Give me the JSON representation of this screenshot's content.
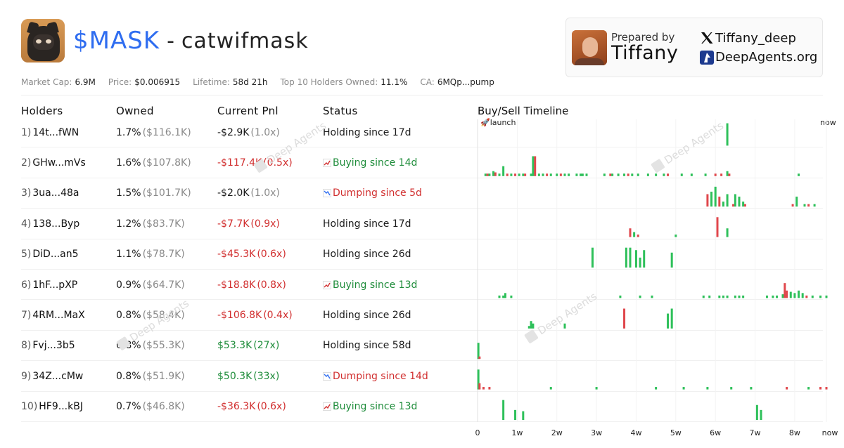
{
  "header": {
    "ticker": "$MASK",
    "dash": "-",
    "project_name": "catwifmask",
    "prepared_by_label": "Prepared by",
    "preparer": "Tiffany",
    "x_handle": "Tiffany_deep",
    "website": "DeepAgents.org"
  },
  "stats": [
    {
      "label": "Market Cap:",
      "value": "6.9M"
    },
    {
      "label": "Price:",
      "value": "$0.006915"
    },
    {
      "label": "Lifetime:",
      "value": "58d 21h"
    },
    {
      "label": "Top 10 Holders Owned:",
      "value": "11.1%"
    },
    {
      "label": "CA:",
      "value": "6MQp...pump"
    }
  ],
  "table": {
    "headers": {
      "holders": "Holders",
      "owned": "Owned",
      "pnl": "Current Pnl",
      "status": "Status"
    },
    "rows": [
      {
        "rank": "1)",
        "address": "14t...fWN",
        "owned_pct": "1.7%",
        "owned_usd": "($116.1K)",
        "pnl": "-$2.9K",
        "mult": "(1.0x)",
        "pnl_kind": "neutral",
        "status": "Holding since 17d",
        "status_kind": "hold"
      },
      {
        "rank": "2)",
        "address": "GHw...mVs",
        "owned_pct": "1.6%",
        "owned_usd": "($107.8K)",
        "pnl": "-$117.4K",
        "mult": "(0.5x)",
        "pnl_kind": "neg",
        "status": "Buying since 14d",
        "status_kind": "buy"
      },
      {
        "rank": "3)",
        "address": "3ua...48a",
        "owned_pct": "1.5%",
        "owned_usd": "($101.7K)",
        "pnl": "-$2.0K",
        "mult": "(1.0x)",
        "pnl_kind": "neutral",
        "status": "Dumping since 5d",
        "status_kind": "dump"
      },
      {
        "rank": "4)",
        "address": "138...Byp",
        "owned_pct": "1.2%",
        "owned_usd": "($83.7K)",
        "pnl": "-$7.7K",
        "mult": "(0.9x)",
        "pnl_kind": "neg",
        "status": "Holding since 17d",
        "status_kind": "hold"
      },
      {
        "rank": "5)",
        "address": "DiD...an5",
        "owned_pct": "1.1%",
        "owned_usd": "($78.7K)",
        "pnl": "-$45.3K",
        "mult": "(0.6x)",
        "pnl_kind": "neg",
        "status": "Holding since 26d",
        "status_kind": "hold"
      },
      {
        "rank": "6)",
        "address": "1hF...pXP",
        "owned_pct": "0.9%",
        "owned_usd": "($64.7K)",
        "pnl": "-$18.8K",
        "mult": "(0.8x)",
        "pnl_kind": "neg",
        "status": "Buying since 13d",
        "status_kind": "buy"
      },
      {
        "rank": "7)",
        "address": "4RM...MaX",
        "owned_pct": "0.8%",
        "owned_usd": "($58.4K)",
        "pnl": "-$106.8K",
        "mult": "(0.4x)",
        "pnl_kind": "neg",
        "status": "Holding since 26d",
        "status_kind": "hold"
      },
      {
        "rank": "8)",
        "address": "Fvj...3b5",
        "owned_pct": "0.8%",
        "owned_usd": "($55.3K)",
        "pnl": "$53.3K",
        "mult": "(27x)",
        "pnl_kind": "pos",
        "status": "Holding since 58d",
        "status_kind": "hold"
      },
      {
        "rank": "9)",
        "address": "34Z...cMw",
        "owned_pct": "0.8%",
        "owned_usd": "($51.9K)",
        "pnl": "$50.3K",
        "mult": "(33x)",
        "pnl_kind": "pos",
        "status": "Dumping since 14d",
        "status_kind": "dump"
      },
      {
        "rank": "10)",
        "address": "HF9...kBJ",
        "owned_pct": "0.7%",
        "owned_usd": "($46.8K)",
        "pnl": "-$36.3K",
        "mult": "(0.6x)",
        "pnl_kind": "neg",
        "status": "Buying since 13d",
        "status_kind": "buy"
      }
    ]
  },
  "timeline": {
    "title": "Buy/Sell Timeline",
    "launch_label": "🚀launch",
    "now_label": "now"
  },
  "watermark_text": "Deep Agents",
  "colors": {
    "accent": "#2f6df0",
    "buy": "#2ec05a",
    "sell": "#e0474c",
    "positive_text": "#1e8c3a",
    "negative_text": "#d12f2f"
  },
  "chart_data": {
    "type": "bar",
    "title": "Buy/Sell Timeline",
    "x_unit": "weeks since launch",
    "x_range": [
      0,
      8.8
    ],
    "x_ticks": [
      "0",
      "1w",
      "2w",
      "3w",
      "4w",
      "5w",
      "6w",
      "7w",
      "8w",
      "now"
    ],
    "bar_height_meaning": "relative trade size",
    "series": [
      {
        "name": "buy",
        "color": "#2ec05a"
      },
      {
        "name": "sell",
        "color": "#e0474c"
      }
    ],
    "rows": [
      {
        "holder": "14t...fWN",
        "events": [
          [
            6.3,
            0.9,
            "buy"
          ]
        ]
      },
      {
        "holder": "GHw...mVs",
        "events": [
          [
            0.2,
            0.1,
            "buy"
          ],
          [
            0.25,
            0.1,
            "sell"
          ],
          [
            0.3,
            0.1,
            "buy"
          ],
          [
            0.4,
            0.2,
            "buy"
          ],
          [
            0.45,
            0.15,
            "sell"
          ],
          [
            0.55,
            0.1,
            "buy"
          ],
          [
            0.65,
            0.4,
            "buy"
          ],
          [
            0.75,
            0.1,
            "sell"
          ],
          [
            0.85,
            0.1,
            "buy"
          ],
          [
            0.95,
            0.1,
            "sell"
          ],
          [
            1.05,
            0.1,
            "buy"
          ],
          [
            1.15,
            0.1,
            "buy"
          ],
          [
            1.2,
            0.1,
            "sell"
          ],
          [
            1.35,
            0.1,
            "buy"
          ],
          [
            1.4,
            0.8,
            "buy"
          ],
          [
            1.45,
            0.8,
            "sell"
          ],
          [
            1.55,
            0.1,
            "buy"
          ],
          [
            1.65,
            0.1,
            "buy"
          ],
          [
            1.75,
            0.1,
            "sell"
          ],
          [
            1.85,
            0.1,
            "buy"
          ],
          [
            2.0,
            0.1,
            "buy"
          ],
          [
            2.1,
            0.1,
            "sell"
          ],
          [
            2.2,
            0.1,
            "buy"
          ],
          [
            2.3,
            0.1,
            "buy"
          ],
          [
            2.5,
            0.1,
            "buy"
          ],
          [
            2.6,
            0.1,
            "buy"
          ],
          [
            2.65,
            0.1,
            "buy"
          ],
          [
            2.75,
            0.1,
            "buy"
          ],
          [
            3.2,
            0.1,
            "buy"
          ],
          [
            3.35,
            0.1,
            "sell"
          ],
          [
            3.4,
            0.1,
            "buy"
          ],
          [
            3.55,
            0.1,
            "buy"
          ],
          [
            3.7,
            0.1,
            "buy"
          ],
          [
            3.8,
            0.1,
            "sell"
          ],
          [
            3.9,
            0.1,
            "buy"
          ],
          [
            4.05,
            0.1,
            "buy"
          ],
          [
            4.3,
            0.1,
            "buy"
          ],
          [
            4.5,
            0.1,
            "buy"
          ],
          [
            4.7,
            0.1,
            "buy"
          ],
          [
            4.8,
            0.1,
            "sell"
          ],
          [
            5.15,
            0.1,
            "buy"
          ],
          [
            5.4,
            0.1,
            "buy"
          ],
          [
            5.75,
            0.1,
            "buy"
          ],
          [
            6.0,
            0.1,
            "sell"
          ],
          [
            6.15,
            0.1,
            "sell"
          ],
          [
            6.3,
            0.2,
            "buy"
          ],
          [
            6.35,
            0.1,
            "sell"
          ],
          [
            8.1,
            0.1,
            "buy"
          ]
        ]
      },
      {
        "holder": "3ua...48a",
        "events": [
          [
            5.8,
            0.5,
            "sell"
          ],
          [
            5.9,
            0.6,
            "buy"
          ],
          [
            6.0,
            0.8,
            "buy"
          ],
          [
            6.1,
            0.4,
            "sell"
          ],
          [
            6.2,
            0.2,
            "buy"
          ],
          [
            6.3,
            0.5,
            "buy"
          ],
          [
            6.45,
            0.1,
            "sell"
          ],
          [
            6.5,
            0.5,
            "buy"
          ],
          [
            6.6,
            0.4,
            "buy"
          ],
          [
            6.7,
            0.2,
            "buy"
          ],
          [
            6.75,
            0.1,
            "sell"
          ],
          [
            7.95,
            0.1,
            "sell"
          ],
          [
            8.05,
            0.4,
            "buy"
          ],
          [
            8.25,
            0.1,
            "buy"
          ],
          [
            8.35,
            0.1,
            "sell"
          ],
          [
            8.5,
            0.1,
            "buy"
          ]
        ]
      },
      {
        "holder": "138...Byp",
        "events": [
          [
            3.85,
            0.35,
            "sell"
          ],
          [
            3.95,
            0.2,
            "buy"
          ],
          [
            4.05,
            0.1,
            "sell"
          ],
          [
            5.0,
            0.1,
            "buy"
          ],
          [
            6.05,
            0.8,
            "sell"
          ],
          [
            6.3,
            0.35,
            "buy"
          ]
        ]
      },
      {
        "holder": "DiD...an5",
        "events": [
          [
            2.9,
            0.8,
            "buy"
          ],
          [
            3.75,
            0.8,
            "buy"
          ],
          [
            3.85,
            0.8,
            "buy"
          ],
          [
            4.0,
            0.7,
            "buy"
          ],
          [
            4.1,
            0.4,
            "buy"
          ],
          [
            4.2,
            0.7,
            "buy"
          ],
          [
            4.9,
            0.6,
            "buy"
          ]
        ]
      },
      {
        "holder": "1hF...pXP",
        "events": [
          [
            0.55,
            0.1,
            "buy"
          ],
          [
            0.65,
            0.1,
            "buy"
          ],
          [
            0.7,
            0.2,
            "buy"
          ],
          [
            0.85,
            0.1,
            "buy"
          ],
          [
            3.6,
            0.1,
            "buy"
          ],
          [
            4.1,
            0.1,
            "buy"
          ],
          [
            4.4,
            0.1,
            "buy"
          ],
          [
            5.7,
            0.1,
            "buy"
          ],
          [
            5.85,
            0.1,
            "buy"
          ],
          [
            6.1,
            0.1,
            "buy"
          ],
          [
            6.2,
            0.1,
            "buy"
          ],
          [
            6.3,
            0.1,
            "buy"
          ],
          [
            6.5,
            0.1,
            "buy"
          ],
          [
            6.6,
            0.1,
            "buy"
          ],
          [
            6.7,
            0.1,
            "buy"
          ],
          [
            7.3,
            0.1,
            "buy"
          ],
          [
            7.45,
            0.1,
            "buy"
          ],
          [
            7.55,
            0.1,
            "buy"
          ],
          [
            7.7,
            0.15,
            "buy"
          ],
          [
            7.75,
            0.6,
            "sell"
          ],
          [
            7.8,
            0.3,
            "sell"
          ],
          [
            7.9,
            0.25,
            "buy"
          ],
          [
            8.0,
            0.2,
            "buy"
          ],
          [
            8.1,
            0.3,
            "buy"
          ],
          [
            8.2,
            0.2,
            "buy"
          ],
          [
            8.3,
            0.1,
            "sell"
          ],
          [
            8.45,
            0.1,
            "buy"
          ],
          [
            8.65,
            0.1,
            "buy"
          ],
          [
            8.8,
            0.1,
            "buy"
          ]
        ]
      },
      {
        "holder": "4RM...MaX",
        "events": [
          [
            1.3,
            0.1,
            "buy"
          ],
          [
            1.35,
            0.3,
            "buy"
          ],
          [
            1.4,
            0.2,
            "buy"
          ],
          [
            2.2,
            0.2,
            "buy"
          ],
          [
            3.7,
            0.8,
            "sell"
          ],
          [
            4.8,
            0.6,
            "buy"
          ],
          [
            4.9,
            0.8,
            "buy"
          ]
        ]
      },
      {
        "holder": "Fvj...3b5",
        "events": [
          [
            0.02,
            0.65,
            "buy"
          ],
          [
            0.05,
            0.1,
            "sell"
          ]
        ]
      },
      {
        "holder": "34Z...cMw",
        "events": [
          [
            0.02,
            0.8,
            "buy"
          ],
          [
            0.05,
            0.25,
            "sell"
          ],
          [
            0.15,
            0.1,
            "sell"
          ],
          [
            0.3,
            0.1,
            "sell"
          ],
          [
            1.85,
            0.1,
            "buy"
          ],
          [
            3.0,
            0.1,
            "buy"
          ],
          [
            4.5,
            0.1,
            "buy"
          ],
          [
            5.2,
            0.1,
            "buy"
          ],
          [
            5.8,
            0.1,
            "buy"
          ],
          [
            6.4,
            0.1,
            "buy"
          ],
          [
            6.9,
            0.1,
            "buy"
          ],
          [
            7.8,
            0.1,
            "sell"
          ],
          [
            8.35,
            0.1,
            "buy"
          ],
          [
            8.65,
            0.1,
            "sell"
          ],
          [
            8.8,
            0.1,
            "sell"
          ]
        ]
      },
      {
        "holder": "HF9...kBJ",
        "events": [
          [
            0.65,
            0.8,
            "buy"
          ],
          [
            0.95,
            0.4,
            "buy"
          ],
          [
            1.15,
            0.35,
            "buy"
          ],
          [
            7.05,
            0.6,
            "buy"
          ],
          [
            7.15,
            0.4,
            "buy"
          ]
        ]
      }
    ]
  }
}
